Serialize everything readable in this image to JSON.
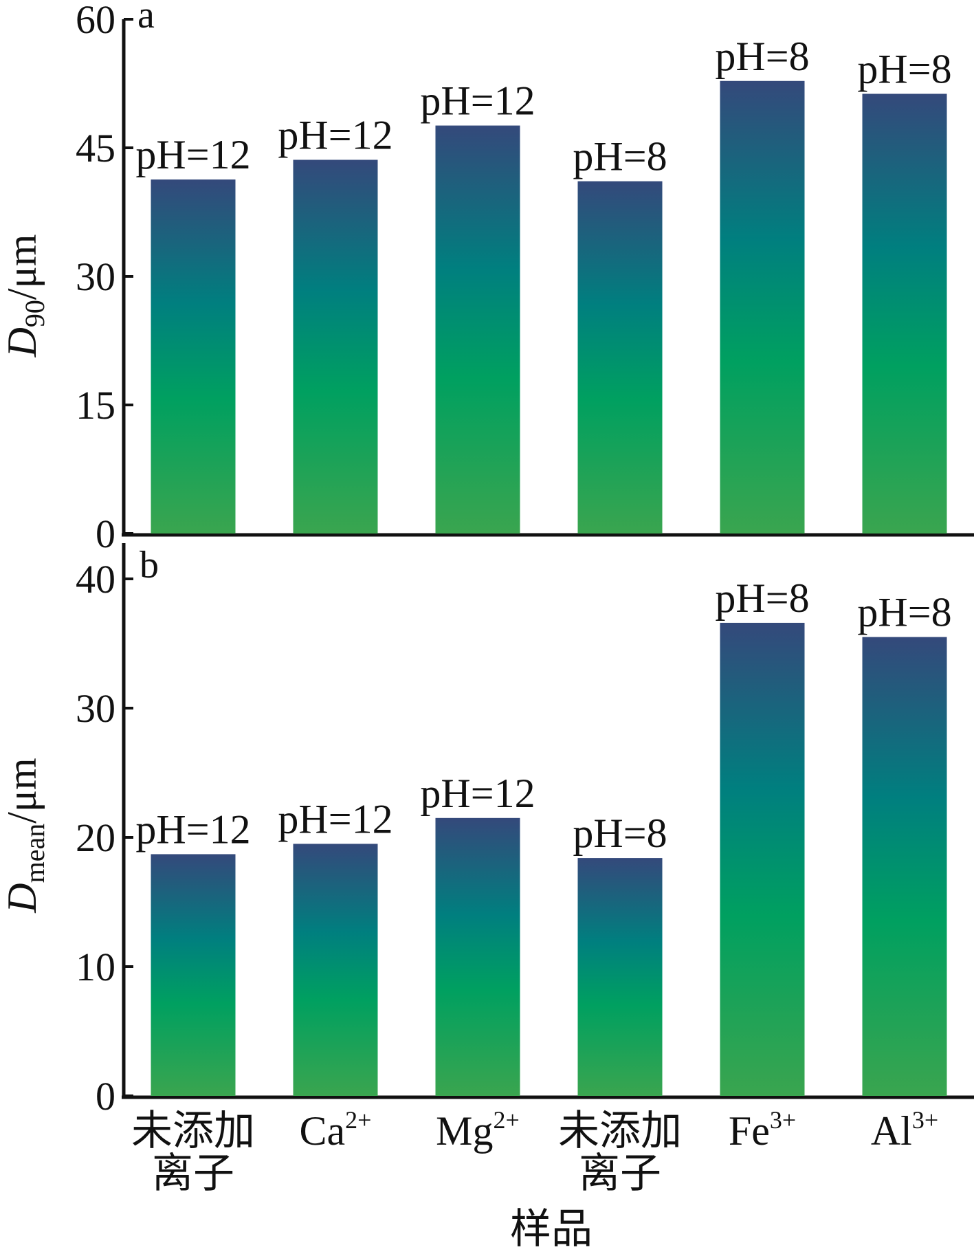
{
  "chart_data": [
    {
      "type": "bar",
      "panel_label": "a",
      "ylabel_main": "D",
      "ylabel_sub": "90",
      "ylabel_unit": "/μm",
      "ylim": [
        0,
        60
      ],
      "yticks": [
        "0",
        "15",
        "30",
        "45",
        "60"
      ],
      "categories": [
        "未添加离子",
        "Ca²⁺",
        "Mg²⁺",
        "未添加离子",
        "Fe³⁺",
        "Al³⁺"
      ],
      "values": [
        41.3,
        43.6,
        47.6,
        41.1,
        52.8,
        51.3
      ],
      "bar_labels": [
        "pH=12",
        "pH=12",
        "pH=12",
        "pH=8",
        "pH=8",
        "pH=8"
      ]
    },
    {
      "type": "bar",
      "panel_label": "b",
      "ylabel_main": "D",
      "ylabel_sub": "mean",
      "ylabel_unit": "/μm",
      "ylim": [
        0,
        40
      ],
      "yticks": [
        "0",
        "10",
        "20",
        "30",
        "40"
      ],
      "categories": [
        "未添加离子",
        "Ca²⁺",
        "Mg²⁺",
        "未添加离子",
        "Fe³⁺",
        "Al³⁺"
      ],
      "values": [
        18.7,
        19.5,
        21.5,
        18.4,
        36.6,
        35.5
      ],
      "bar_labels": [
        "pH=12",
        "pH=12",
        "pH=12",
        "pH=8",
        "pH=8",
        "pH=8"
      ]
    }
  ],
  "x_categories": [
    {
      "lines": [
        "未添加",
        "离子"
      ]
    },
    {
      "base": "Ca",
      "sup": "2+"
    },
    {
      "base": "Mg",
      "sup": "2+"
    },
    {
      "lines": [
        "未添加",
        "离子"
      ]
    },
    {
      "base": "Fe",
      "sup": "3+"
    },
    {
      "base": "Al",
      "sup": "3+"
    }
  ],
  "xlabel": "样品",
  "colors": {
    "bar_top": "#34497b",
    "bar_mid": "#007f7f",
    "bar_low": "#00a060",
    "bar_bottom": "#3aa54f",
    "axis": "#111111"
  }
}
